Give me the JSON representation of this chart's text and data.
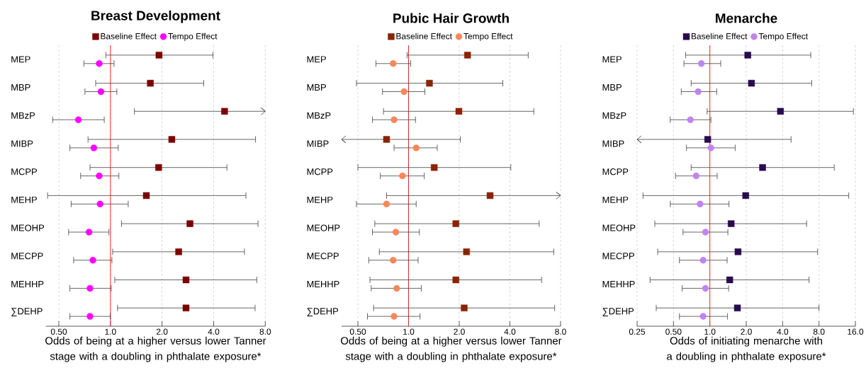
{
  "chart_data": [
    {
      "type": "scatter",
      "orientation": "horizontal",
      "title": "Breast Development",
      "xlabel": "Odds of being at a higher versus lower Tanner stage with a doubling in phthalate exposure*",
      "categories": [
        "MEP",
        "MBP",
        "MBzP",
        "MIBP",
        "MCPP",
        "MEHP",
        "MEOHP",
        "MECPP",
        "MEHHP",
        "∑DEHP"
      ],
      "series": [
        {
          "name": "Baseline Effect",
          "color": "#7b0000",
          "marker": "square",
          "values": [
            1.92,
            1.71,
            4.63,
            2.28,
            1.91,
            1.62,
            2.91,
            2.5,
            2.76,
            2.76
          ],
          "errors": [
            [
              0.94,
              3.96
            ],
            [
              0.82,
              3.5
            ],
            [
              1.38,
              8
            ],
            [
              0.74,
              7.02
            ],
            [
              0.76,
              4.78
            ],
            [
              0.43,
              6.17
            ],
            [
              1.16,
              7.26
            ],
            [
              1.03,
              6.05
            ],
            [
              1.06,
              7.14
            ],
            [
              1.1,
              6.98
            ]
          ]
        },
        {
          "name": "Tempo Effect",
          "color": "#ff00ff",
          "marker": "circle",
          "values": [
            0.86,
            0.88,
            0.65,
            0.8,
            0.86,
            0.87,
            0.75,
            0.79,
            0.76,
            0.76
          ],
          "errors": [
            [
              0.7,
              1.05
            ],
            [
              0.71,
              1.09
            ],
            [
              0.46,
              0.92
            ],
            [
              0.58,
              1.11
            ],
            [
              0.67,
              1.12
            ],
            [
              0.59,
              1.27
            ],
            [
              0.57,
              0.98
            ],
            [
              0.61,
              1.02
            ],
            [
              0.58,
              1.01
            ],
            [
              0.58,
              1.0
            ]
          ]
        }
      ],
      "xlim": [
        0.42,
        8
      ],
      "xticks": [
        {
          "value": 0.5,
          "label": "0.50"
        },
        {
          "value": 1,
          "label": "1.0"
        },
        {
          "value": 2,
          "label": "2.0"
        },
        {
          "value": 4,
          "label": "4.0"
        },
        {
          "value": 8,
          "label": "8.0"
        }
      ],
      "log": "x",
      "grid": "x",
      "legend": "top",
      "ref_lines": [
        {
          "axis": "x",
          "value": 1,
          "color": "#ff2a2a"
        }
      ]
    },
    {
      "type": "scatter",
      "orientation": "horizontal",
      "title": "Pubic Hair Growth",
      "xlabel": "Odds of being at a higher versus lower Tanner stage with a doubling in phthalate exposure*",
      "categories": [
        "MEP",
        "MBP",
        "MBzP",
        "MIBP",
        "MCPP",
        "MEHP",
        "MEOHP",
        "MECPP",
        "MEHHP",
        "∑DEHP"
      ],
      "series": [
        {
          "name": "Baseline Effect",
          "color": "#8b2300",
          "marker": "square",
          "values": [
            2.24,
            1.33,
            1.99,
            0.74,
            1.42,
            3.05,
            1.91,
            2.21,
            1.91,
            2.14
          ],
          "errors": [
            [
              0.98,
              5.14
            ],
            [
              0.49,
              3.63
            ],
            [
              0.71,
              5.55
            ],
            [
              0.4,
              2.03
            ],
            [
              0.5,
              4.05
            ],
            [
              0.74,
              8
            ],
            [
              0.63,
              5.97
            ],
            [
              0.67,
              7.29
            ],
            [
              0.59,
              6.17
            ],
            [
              0.62,
              7.38
            ]
          ]
        },
        {
          "name": "Tempo Effect",
          "color": "#f7875a",
          "marker": "circle",
          "values": [
            0.81,
            0.94,
            0.82,
            1.11,
            0.92,
            0.74,
            0.84,
            0.81,
            0.85,
            0.82
          ],
          "errors": [
            [
              0.64,
              1.03
            ],
            [
              0.7,
              1.25
            ],
            [
              0.61,
              1.1
            ],
            [
              0.82,
              1.48
            ],
            [
              0.68,
              1.24
            ],
            [
              0.49,
              1.11
            ],
            [
              0.61,
              1.16
            ],
            [
              0.58,
              1.14
            ],
            [
              0.6,
              1.19
            ],
            [
              0.57,
              1.17
            ]
          ]
        }
      ],
      "xlim": [
        0.4,
        8
      ],
      "xticks": [
        {
          "value": 0.5,
          "label": "0.50"
        },
        {
          "value": 1,
          "label": "1.0"
        },
        {
          "value": 2,
          "label": "2.0"
        },
        {
          "value": 4,
          "label": "4.0"
        },
        {
          "value": 8,
          "label": "8.0"
        }
      ],
      "log": "x",
      "grid": "x",
      "legend": "top",
      "ref_lines": [
        {
          "axis": "x",
          "value": 1,
          "color": "#d42a2a"
        }
      ]
    },
    {
      "type": "scatter",
      "orientation": "horizontal",
      "title": "Menarche",
      "xlabel": "Odds of initiating menarche with a doubling in phthalate exposure*",
      "categories": [
        "MEP",
        "MBP",
        "MBzP",
        "MIBP",
        "MCPP",
        "MEHP",
        "MEOHP",
        "MECPP",
        "MEHHP",
        "∑DEHP"
      ],
      "series": [
        {
          "name": "Baseline Effect",
          "color": "#2a0a4f",
          "marker": "square",
          "values": [
            2.06,
            2.21,
            3.84,
            0.96,
            2.73,
            1.98,
            1.5,
            1.71,
            1.46,
            1.69
          ],
          "errors": [
            [
              0.63,
              6.84
            ],
            [
              0.7,
              6.96
            ],
            [
              0.95,
              15.4
            ],
            [
              0.25,
              4.7
            ],
            [
              0.7,
              10.7
            ],
            [
              0.28,
              14.1
            ],
            [
              0.35,
              6.32
            ],
            [
              0.37,
              7.78
            ],
            [
              0.32,
              6.62
            ],
            [
              0.36,
              8.0
            ]
          ]
        },
        {
          "name": "Tempo Effect",
          "color": "#c084f0",
          "marker": "circle",
          "values": [
            0.85,
            0.8,
            0.69,
            1.02,
            0.77,
            0.83,
            0.92,
            0.88,
            0.92,
            0.88
          ],
          "errors": [
            [
              0.61,
              1.23
            ],
            [
              0.58,
              1.14
            ],
            [
              0.47,
              1.02
            ],
            [
              0.64,
              1.62
            ],
            [
              0.52,
              1.15
            ],
            [
              0.47,
              1.44
            ],
            [
              0.6,
              1.41
            ],
            [
              0.56,
              1.39
            ],
            [
              0.59,
              1.43
            ],
            [
              0.56,
              1.4
            ]
          ]
        }
      ],
      "xlim": [
        0.25,
        16
      ],
      "xticks": [
        {
          "value": 0.25,
          "label": "0.25"
        },
        {
          "value": 0.5,
          "label": "0.50"
        },
        {
          "value": 1,
          "label": "1.0"
        },
        {
          "value": 2,
          "label": "2.0"
        },
        {
          "value": 4,
          "label": "4.0"
        },
        {
          "value": 8,
          "label": "8.0"
        },
        {
          "value": 16,
          "label": "16.0"
        }
      ],
      "log": "x",
      "grid": "x",
      "legend": "top",
      "ref_lines": [
        {
          "axis": "x",
          "value": 1,
          "color": "#ff2a2a"
        }
      ]
    }
  ]
}
